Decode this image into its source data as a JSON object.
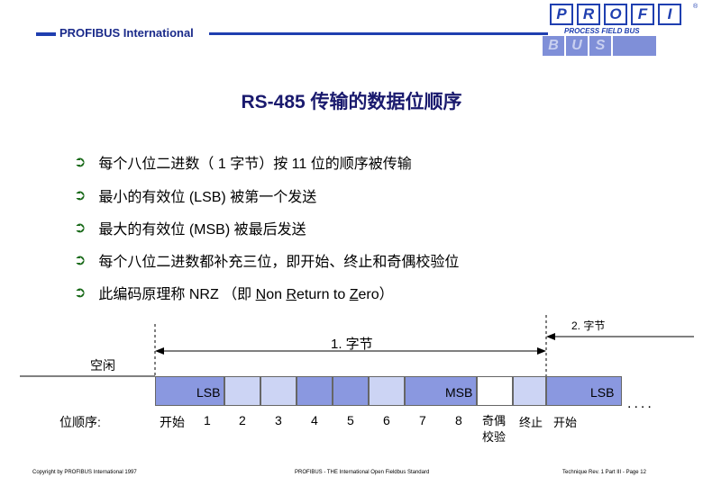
{
  "header": {
    "org": "PROFIBUS International",
    "logo_letters": [
      "P",
      "R",
      "O",
      "F",
      "I"
    ],
    "logo_sub": "PROCESS FIELD BUS",
    "logo_bus": [
      "B",
      "U",
      "S"
    ],
    "reg_mark": "®"
  },
  "title": "RS-485 传输的数据位顺序",
  "bullets": [
    {
      "text": "每个八位二进数（ 1 字节）按 11 位的顺序被传输"
    },
    {
      "text": "最小的有效位 (LSB) 被第一个发送"
    },
    {
      "text": "最大的有效位 (MSB) 被最后发送"
    },
    {
      "text": "每个八位二进数都补充三位，即开始、终止和奇偶校验位"
    },
    {
      "pre": "此编码原理称 NRZ （即 ",
      "n": "N",
      "on": "on ",
      "r": "R",
      "eturn": "eturn to ",
      "z": "Z",
      "ero": "ero）"
    }
  ],
  "bullet_icon": "arrow-icon",
  "diagram": {
    "label_idle": "空闲",
    "label_byte1": "1. 字节",
    "label_byte2": "2. 字节",
    "label_order": "位顺序:",
    "label_start": "开始",
    "bit_numbers": [
      "1",
      "2",
      "3",
      "4",
      "5",
      "6",
      "7",
      "8"
    ],
    "label_parity": "奇偶\n校验",
    "label_stop": "终止",
    "label_start2": "开始",
    "label_lsb": "LSB",
    "label_msb": "MSB",
    "label_lsb2": "LSB",
    "ellipsis": "....",
    "colors": {
      "dark": "#8a98e0",
      "light": "#ccd4f4"
    }
  },
  "footer": {
    "left": "Copyright by PROFIBUS International 1997",
    "center": "PROFIBUS - THE International Open Fieldbus Standard",
    "right": "Technique  Rev. 1  Part III - Page 12"
  }
}
